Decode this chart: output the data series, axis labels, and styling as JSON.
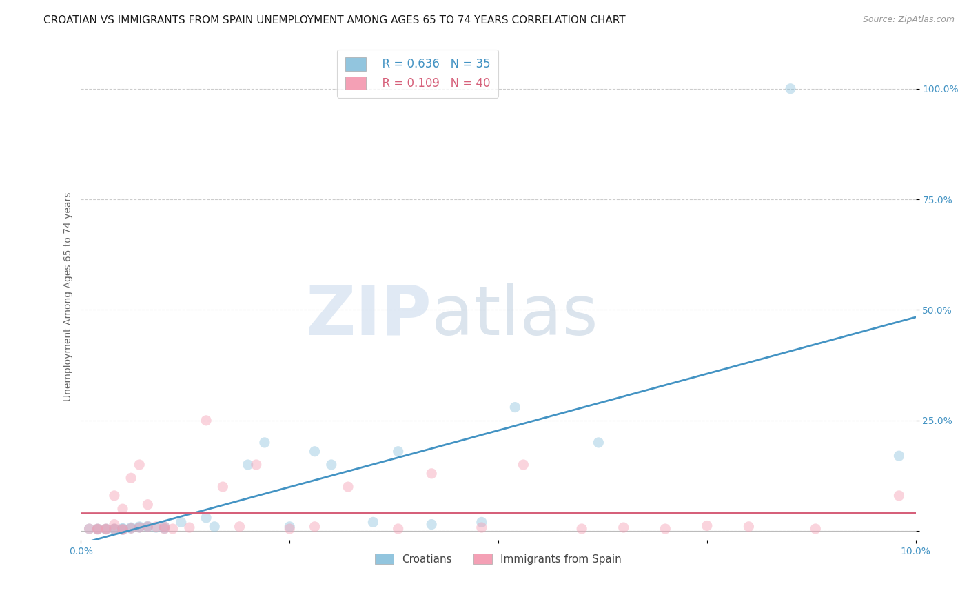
{
  "title": "CROATIAN VS IMMIGRANTS FROM SPAIN UNEMPLOYMENT AMONG AGES 65 TO 74 YEARS CORRELATION CHART",
  "source": "Source: ZipAtlas.com",
  "ylabel": "Unemployment Among Ages 65 to 74 years",
  "xlim": [
    0.0,
    0.1
  ],
  "ylim": [
    -0.02,
    1.08
  ],
  "xticks": [
    0.0,
    0.025,
    0.05,
    0.075,
    0.1
  ],
  "xticklabels": [
    "0.0%",
    "",
    "",
    "",
    "10.0%"
  ],
  "yticks": [
    0.0,
    0.25,
    0.5,
    0.75,
    1.0
  ],
  "yticklabels": [
    "",
    "25.0%",
    "50.0%",
    "75.0%",
    "100.0%"
  ],
  "croatians_R": 0.636,
  "croatians_N": 35,
  "immigrants_R": 0.109,
  "immigrants_N": 40,
  "croatian_color": "#92c5de",
  "immigrant_color": "#f4a0b5",
  "croatian_line_color": "#4393c3",
  "immigrant_line_color": "#d6607a",
  "legend_label_croatians": "Croatians",
  "legend_label_immigrants": "Immigrants from Spain",
  "watermark_zip": "ZIP",
  "watermark_atlas": "atlas",
  "croatians_x": [
    0.001,
    0.002,
    0.002,
    0.003,
    0.003,
    0.004,
    0.004,
    0.005,
    0.005,
    0.005,
    0.006,
    0.006,
    0.007,
    0.007,
    0.008,
    0.008,
    0.009,
    0.01,
    0.01,
    0.012,
    0.015,
    0.016,
    0.02,
    0.022,
    0.025,
    0.028,
    0.03,
    0.035,
    0.038,
    0.042,
    0.048,
    0.052,
    0.062,
    0.085,
    0.098
  ],
  "croatians_y": [
    0.005,
    0.004,
    0.005,
    0.004,
    0.005,
    0.005,
    0.004,
    0.003,
    0.005,
    0.006,
    0.006,
    0.008,
    0.008,
    0.01,
    0.009,
    0.011,
    0.008,
    0.006,
    0.01,
    0.02,
    0.03,
    0.01,
    0.15,
    0.2,
    0.01,
    0.18,
    0.15,
    0.02,
    0.18,
    0.015,
    0.02,
    0.28,
    0.2,
    1.0,
    0.17
  ],
  "immigrants_x": [
    0.001,
    0.002,
    0.002,
    0.003,
    0.003,
    0.004,
    0.004,
    0.004,
    0.005,
    0.005,
    0.005,
    0.006,
    0.006,
    0.007,
    0.007,
    0.008,
    0.008,
    0.009,
    0.01,
    0.01,
    0.011,
    0.013,
    0.015,
    0.017,
    0.019,
    0.021,
    0.025,
    0.028,
    0.032,
    0.038,
    0.042,
    0.048,
    0.053,
    0.06,
    0.065,
    0.07,
    0.075,
    0.08,
    0.088,
    0.098
  ],
  "immigrants_y": [
    0.005,
    0.004,
    0.005,
    0.004,
    0.005,
    0.005,
    0.08,
    0.015,
    0.004,
    0.05,
    0.003,
    0.006,
    0.12,
    0.008,
    0.15,
    0.01,
    0.06,
    0.01,
    0.01,
    0.005,
    0.005,
    0.008,
    0.25,
    0.1,
    0.01,
    0.15,
    0.005,
    0.01,
    0.1,
    0.005,
    0.13,
    0.008,
    0.15,
    0.005,
    0.008,
    0.005,
    0.012,
    0.01,
    0.005,
    0.08
  ],
  "title_fontsize": 11,
  "label_fontsize": 10,
  "tick_fontsize": 10,
  "background_color": "#ffffff",
  "grid_color": "#cccccc",
  "marker_size": 120,
  "marker_alpha": 0.45
}
